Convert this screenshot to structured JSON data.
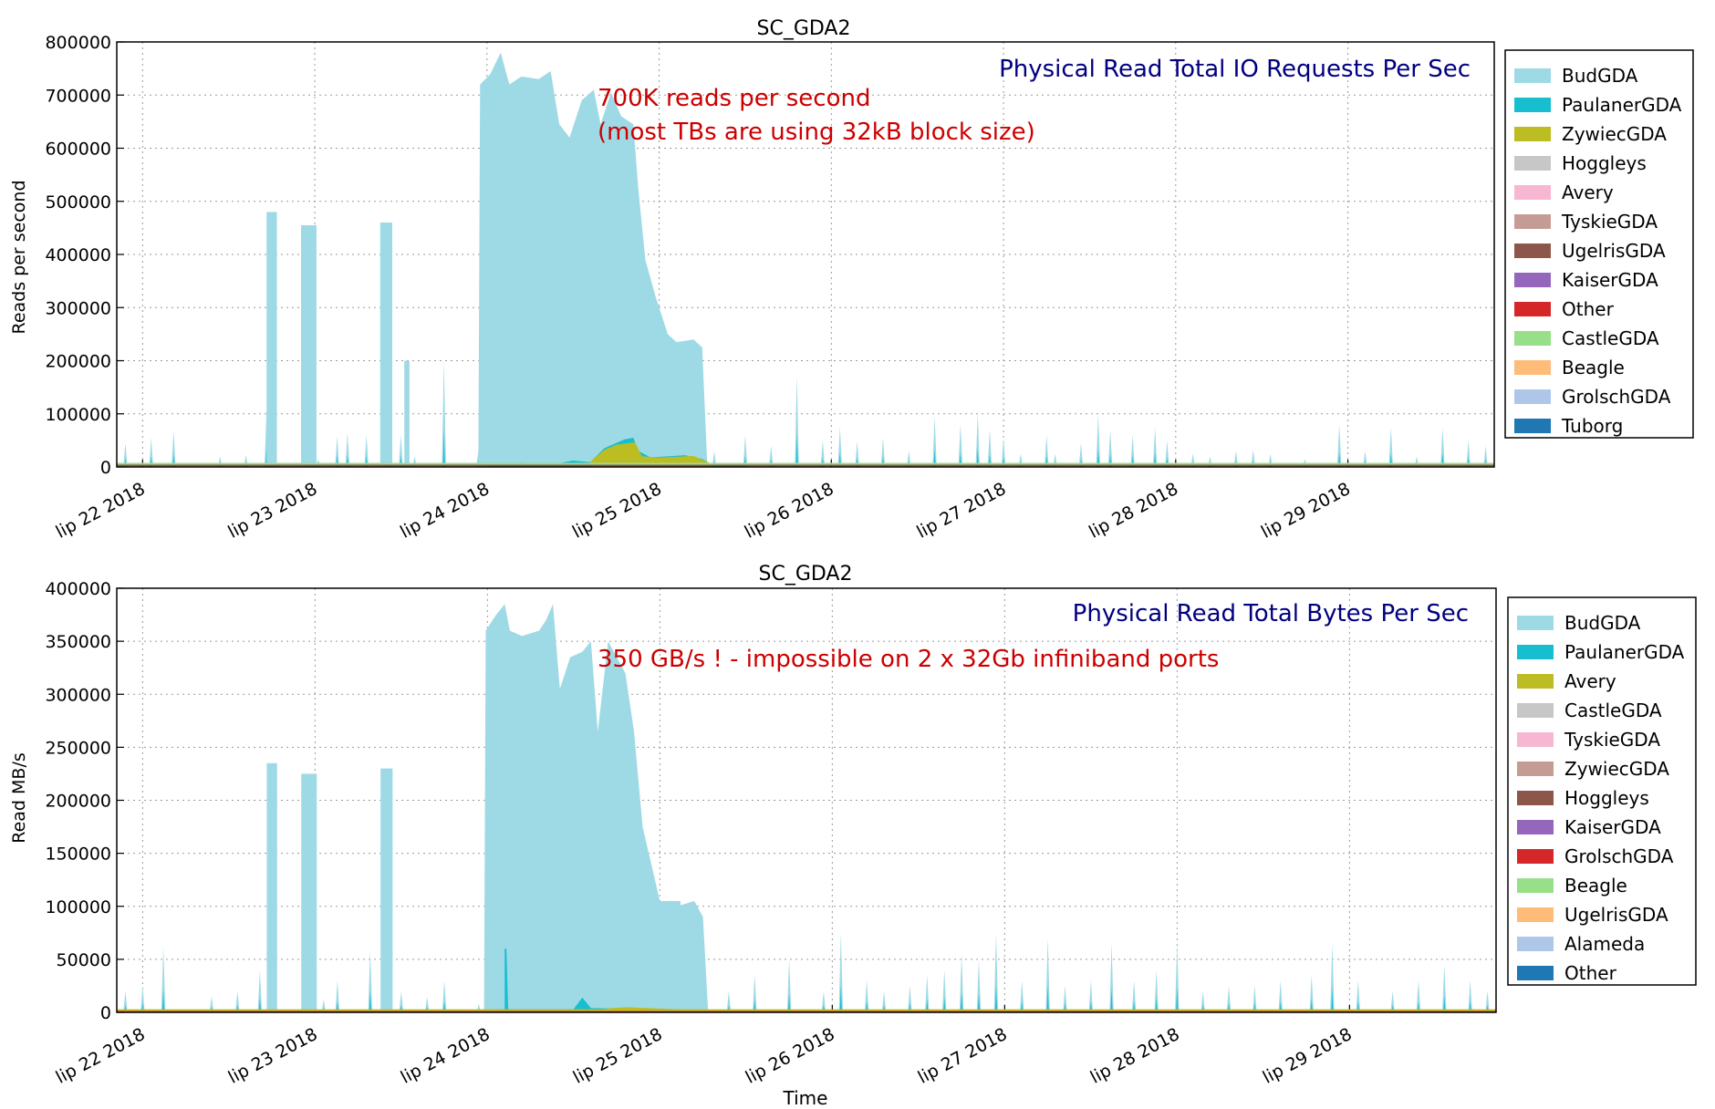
{
  "charts": [
    {
      "type": "area",
      "title": "SC_GDA2",
      "annotation_title": "Physical Read Total IO Requests Per Sec",
      "annotation_note_line1": "700K reads per second",
      "annotation_note_line2": "(most TBs are using 32kB block size)",
      "ylabel": "Reads per second",
      "xlabel": "",
      "ylim": [
        0,
        800000
      ],
      "yticks": [
        "0",
        "100000",
        "200000",
        "300000",
        "400000",
        "500000",
        "600000",
        "700000",
        "800000"
      ],
      "xticks": [
        "lip 22 2018",
        "lip 23 2018",
        "lip 24 2018",
        "lip 25 2018",
        "lip 26 2018",
        "lip 27 2018",
        "lip 28 2018",
        "lip 29 2018"
      ],
      "legend_position": "outside-right",
      "legend": [
        {
          "name": "BudGDA",
          "color": "#9edae5"
        },
        {
          "name": "PaulanerGDA",
          "color": "#17becf"
        },
        {
          "name": "ZywiecGDA",
          "color": "#bcbd22"
        },
        {
          "name": "Hoggleys",
          "color": "#c7c7c7"
        },
        {
          "name": "Avery",
          "color": "#f7b6d2"
        },
        {
          "name": "TyskieGDA",
          "color": "#c49c94"
        },
        {
          "name": "UgelrisGDA",
          "color": "#8c564b"
        },
        {
          "name": "KaiserGDA",
          "color": "#9467bd"
        },
        {
          "name": "Other",
          "color": "#d62728"
        },
        {
          "name": "CastleGDA",
          "color": "#98df8a"
        },
        {
          "name": "Beagle",
          "color": "#ffbb78"
        },
        {
          "name": "GrolschGDA",
          "color": "#aec7e8"
        },
        {
          "name": "Tuborg",
          "color": "#1f77b4"
        }
      ],
      "chart_data": {
        "type": "area",
        "x_unit": "days from lip 22 2018",
        "x_range": [
          -0.15,
          7.85
        ],
        "grid": true,
        "spikes": [
          [
            -0.1,
            45000
          ],
          [
            0.05,
            55000
          ],
          [
            0.18,
            68000
          ],
          [
            0.45,
            20000
          ],
          [
            0.6,
            22000
          ],
          [
            0.72,
            108000
          ],
          [
            0.95,
            30000
          ],
          [
            1.02,
            15000
          ],
          [
            1.13,
            58000
          ],
          [
            1.19,
            65000
          ],
          [
            1.3,
            60000
          ],
          [
            1.42,
            35000
          ],
          [
            1.5,
            60000
          ],
          [
            1.58,
            20000
          ],
          [
            1.75,
            200000
          ],
          [
            1.95,
            30000
          ],
          [
            2.35,
            40000
          ],
          [
            2.55,
            70000
          ],
          [
            2.82,
            45000
          ],
          [
            2.9,
            50000
          ],
          [
            3.05,
            48000
          ],
          [
            3.2,
            50000
          ],
          [
            3.32,
            30000
          ],
          [
            3.5,
            60000
          ],
          [
            3.65,
            40000
          ],
          [
            3.8,
            172000
          ],
          [
            3.95,
            50000
          ],
          [
            4.05,
            75000
          ],
          [
            4.15,
            48000
          ],
          [
            4.3,
            55000
          ],
          [
            4.45,
            30000
          ],
          [
            4.6,
            96000
          ],
          [
            4.75,
            80000
          ],
          [
            4.85,
            100000
          ],
          [
            4.92,
            70000
          ],
          [
            5.0,
            55000
          ],
          [
            5.1,
            25000
          ],
          [
            5.25,
            60000
          ],
          [
            5.3,
            25000
          ],
          [
            5.45,
            45000
          ],
          [
            5.55,
            100000
          ],
          [
            5.62,
            70000
          ],
          [
            5.75,
            60000
          ],
          [
            5.88,
            75000
          ],
          [
            5.95,
            50000
          ],
          [
            6.1,
            25000
          ],
          [
            6.2,
            20000
          ],
          [
            6.35,
            30000
          ],
          [
            6.45,
            32000
          ],
          [
            6.55,
            25000
          ],
          [
            6.75,
            15000
          ],
          [
            6.95,
            80000
          ],
          [
            7.1,
            30000
          ],
          [
            7.25,
            75000
          ],
          [
            7.4,
            20000
          ],
          [
            7.55,
            75000
          ],
          [
            7.7,
            50000
          ],
          [
            7.8,
            40000
          ]
        ],
        "bursts": [
          {
            "x0": 0.72,
            "x1": 0.78,
            "y": 480000
          },
          {
            "x0": 0.92,
            "x1": 1.01,
            "y": 455000
          },
          {
            "x0": 1.38,
            "x1": 1.45,
            "y": 460000
          },
          {
            "x0": 1.52,
            "x1": 1.55,
            "y": 200000
          },
          {
            "x0": 2.85,
            "x1": 3.12,
            "y": 230000
          }
        ],
        "main_block": [
          [
            1.95,
            0
          ],
          [
            1.96,
            720000
          ],
          [
            2.02,
            740000
          ],
          [
            2.08,
            780000
          ],
          [
            2.13,
            720000
          ],
          [
            2.2,
            735000
          ],
          [
            2.3,
            730000
          ],
          [
            2.37,
            745000
          ],
          [
            2.42,
            645000
          ],
          [
            2.48,
            620000
          ],
          [
            2.55,
            690000
          ],
          [
            2.62,
            710000
          ],
          [
            2.66,
            645000
          ],
          [
            2.72,
            705000
          ],
          [
            2.78,
            660000
          ],
          [
            2.85,
            645000
          ],
          [
            2.88,
            520000
          ],
          [
            2.92,
            390000
          ],
          [
            2.98,
            320000
          ],
          [
            3.05,
            250000
          ],
          [
            3.1,
            235000
          ],
          [
            3.2,
            240000
          ],
          [
            3.25,
            225000
          ],
          [
            3.28,
            0
          ]
        ],
        "stack_mid": [
          [
            2.0,
            4000
          ],
          [
            2.2,
            8000
          ],
          [
            2.4,
            6000
          ],
          [
            2.5,
            12000
          ],
          [
            2.6,
            9000
          ],
          [
            2.68,
            35000
          ],
          [
            2.75,
            45000
          ],
          [
            2.8,
            52000
          ],
          [
            2.85,
            55000
          ],
          [
            2.88,
            30000
          ],
          [
            2.95,
            18000
          ],
          [
            3.05,
            20000
          ],
          [
            3.15,
            22000
          ],
          [
            3.25,
            15000
          ],
          [
            3.3,
            6000
          ],
          [
            3.5,
            5000
          ]
        ],
        "stack_top": [
          [
            2.6,
            12000
          ],
          [
            2.68,
            40000
          ],
          [
            2.75,
            52000
          ],
          [
            2.82,
            56000
          ],
          [
            2.86,
            58000
          ],
          [
            2.9,
            25000
          ],
          [
            3.0,
            22000
          ],
          [
            3.1,
            24000
          ],
          [
            3.2,
            26000
          ],
          [
            3.3,
            8000
          ]
        ],
        "baseline_series": [
          {
            "name": "Other",
            "level": 3000
          },
          {
            "name": "UgelrisGDA",
            "level": 4500
          },
          {
            "name": "CastleGDA",
            "level": 6000
          }
        ]
      }
    },
    {
      "type": "area",
      "title": "SC_GDA2",
      "annotation_title": "Physical Read Total Bytes Per Sec",
      "annotation_note_line1": "350 GB/s ! - impossible on 2 x 32Gb infiniband ports",
      "annotation_note_line2": "",
      "ylabel": "Read MB/s",
      "xlabel": "Time",
      "ylim": [
        0,
        400000
      ],
      "yticks": [
        "0",
        "50000",
        "100000",
        "150000",
        "200000",
        "250000",
        "300000",
        "350000",
        "400000"
      ],
      "xticks": [
        "lip 22 2018",
        "lip 23 2018",
        "lip 24 2018",
        "lip 25 2018",
        "lip 26 2018",
        "lip 27 2018",
        "lip 28 2018",
        "lip 29 2018"
      ],
      "legend_position": "outside-right",
      "legend": [
        {
          "name": "BudGDA",
          "color": "#9edae5"
        },
        {
          "name": "PaulanerGDA",
          "color": "#17becf"
        },
        {
          "name": "Avery",
          "color": "#bcbd22"
        },
        {
          "name": "CastleGDA",
          "color": "#c7c7c7"
        },
        {
          "name": "TyskieGDA",
          "color": "#f7b6d2"
        },
        {
          "name": "ZywiecGDA",
          "color": "#c49c94"
        },
        {
          "name": "Hoggleys",
          "color": "#8c564b"
        },
        {
          "name": "KaiserGDA",
          "color": "#9467bd"
        },
        {
          "name": "GrolschGDA",
          "color": "#d62728"
        },
        {
          "name": "Beagle",
          "color": "#98df8a"
        },
        {
          "name": "UgelrisGDA",
          "color": "#ffbb78"
        },
        {
          "name": "Alameda",
          "color": "#aec7e8"
        },
        {
          "name": "Other",
          "color": "#1f77b4"
        }
      ],
      "chart_data": {
        "type": "area",
        "x_unit": "days from lip 22 2018",
        "x_range": [
          -0.15,
          7.85
        ],
        "grid": true,
        "spikes": [
          [
            -0.1,
            20000
          ],
          [
            0.0,
            25000
          ],
          [
            0.12,
            62000
          ],
          [
            0.4,
            15000
          ],
          [
            0.55,
            20000
          ],
          [
            0.68,
            40000
          ],
          [
            0.95,
            20000
          ],
          [
            1.05,
            12000
          ],
          [
            1.13,
            30000
          ],
          [
            1.32,
            58000
          ],
          [
            1.5,
            20000
          ],
          [
            1.65,
            15000
          ],
          [
            1.75,
            30000
          ],
          [
            1.95,
            8000
          ],
          [
            2.42,
            30000
          ],
          [
            2.6,
            45000
          ],
          [
            2.85,
            30000
          ],
          [
            3.05,
            25000
          ],
          [
            3.1,
            63000
          ],
          [
            3.25,
            30000
          ],
          [
            3.4,
            20000
          ],
          [
            3.55,
            35000
          ],
          [
            3.75,
            50000
          ],
          [
            3.95,
            20000
          ],
          [
            4.05,
            75000
          ],
          [
            4.2,
            30000
          ],
          [
            4.3,
            20000
          ],
          [
            4.45,
            25000
          ],
          [
            4.55,
            35000
          ],
          [
            4.65,
            40000
          ],
          [
            4.75,
            55000
          ],
          [
            4.85,
            50000
          ],
          [
            4.95,
            75000
          ],
          [
            5.1,
            30000
          ],
          [
            5.25,
            70000
          ],
          [
            5.35,
            25000
          ],
          [
            5.5,
            30000
          ],
          [
            5.62,
            65000
          ],
          [
            5.75,
            30000
          ],
          [
            5.88,
            40000
          ],
          [
            6.0,
            65000
          ],
          [
            6.15,
            20000
          ],
          [
            6.3,
            25000
          ],
          [
            6.45,
            25000
          ],
          [
            6.6,
            30000
          ],
          [
            6.78,
            35000
          ],
          [
            6.9,
            65000
          ],
          [
            7.05,
            30000
          ],
          [
            7.25,
            20000
          ],
          [
            7.4,
            30000
          ],
          [
            7.55,
            45000
          ],
          [
            7.7,
            30000
          ],
          [
            7.8,
            20000
          ]
        ],
        "bursts": [
          {
            "x0": 0.72,
            "x1": 0.78,
            "y": 235000
          },
          {
            "x0": 0.92,
            "x1": 1.01,
            "y": 225000
          },
          {
            "x0": 1.38,
            "x1": 1.45,
            "y": 230000
          },
          {
            "x0": 2.85,
            "x1": 3.12,
            "y": 105000
          }
        ],
        "main_block": [
          [
            1.98,
            0
          ],
          [
            1.99,
            360000
          ],
          [
            2.05,
            375000
          ],
          [
            2.1,
            385000
          ],
          [
            2.13,
            360000
          ],
          [
            2.2,
            355000
          ],
          [
            2.3,
            360000
          ],
          [
            2.34,
            370000
          ],
          [
            2.38,
            385000
          ],
          [
            2.42,
            305000
          ],
          [
            2.48,
            335000
          ],
          [
            2.55,
            340000
          ],
          [
            2.6,
            350000
          ],
          [
            2.64,
            265000
          ],
          [
            2.7,
            350000
          ],
          [
            2.75,
            335000
          ],
          [
            2.8,
            320000
          ],
          [
            2.85,
            265000
          ],
          [
            2.9,
            175000
          ],
          [
            2.95,
            140000
          ],
          [
            3.0,
            105000
          ],
          [
            3.1,
            100000
          ],
          [
            3.2,
            105000
          ],
          [
            3.25,
            90000
          ],
          [
            3.28,
            0
          ]
        ],
        "stack_mid": [
          [
            2.0,
            2000
          ],
          [
            2.1,
            3000
          ],
          [
            2.1,
            60000
          ],
          [
            2.11,
            60000
          ],
          [
            2.12,
            3000
          ],
          [
            2.5,
            3000
          ],
          [
            2.55,
            14000
          ],
          [
            2.6,
            4000
          ],
          [
            3.0,
            3000
          ],
          [
            3.3,
            2000
          ]
        ],
        "stack_top": [
          [
            2.6,
            2000
          ],
          [
            2.72,
            5000
          ],
          [
            2.8,
            6000
          ],
          [
            3.2,
            3000
          ]
        ],
        "baseline_series": [
          {
            "name": "GrolschGDA",
            "level": 1200
          },
          {
            "name": "Avery",
            "level": 2000
          }
        ]
      }
    }
  ]
}
